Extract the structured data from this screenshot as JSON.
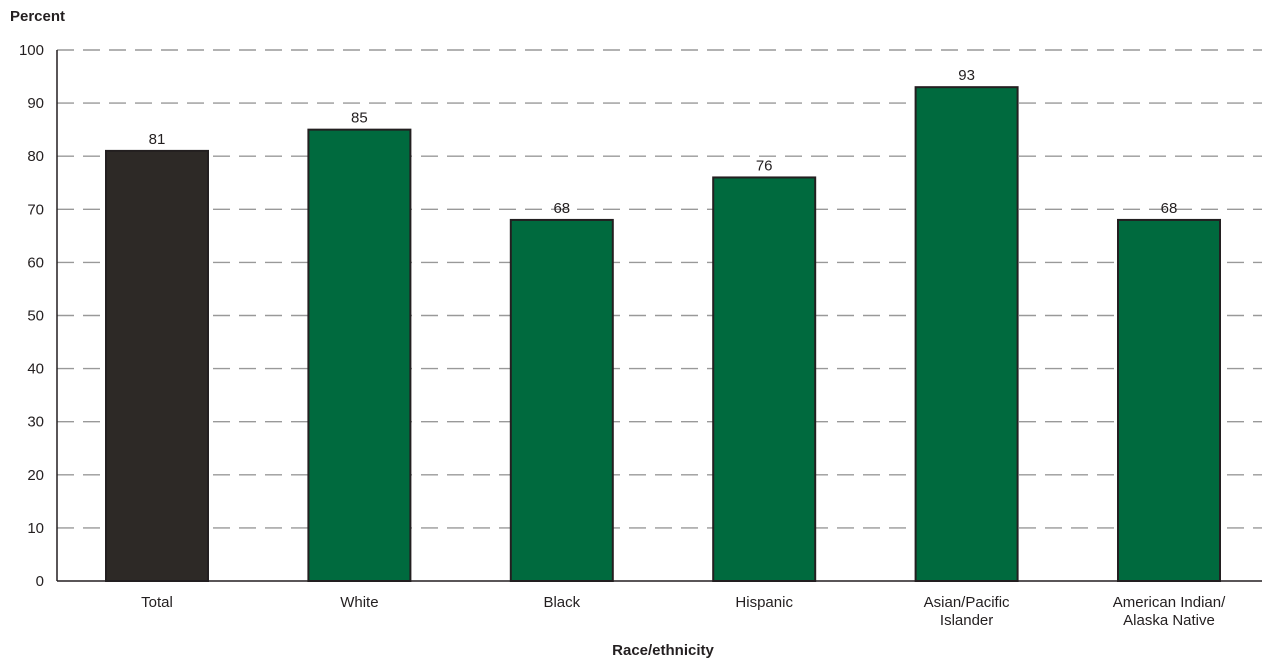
{
  "chart_data": {
    "type": "bar",
    "title": "",
    "ylabel": "Percent",
    "xlabel": "Race/ethnicity",
    "ylim": [
      0,
      100
    ],
    "yticks": [
      0,
      10,
      20,
      30,
      40,
      50,
      60,
      70,
      80,
      90,
      100
    ],
    "grid": "dashed horizontal",
    "categories": [
      [
        "Total"
      ],
      [
        "White"
      ],
      [
        "Black"
      ],
      [
        "Hispanic"
      ],
      [
        "Asian/Pacific",
        "Islander"
      ],
      [
        "American Indian/",
        "Alaska Native"
      ]
    ],
    "values": [
      81,
      85,
      68,
      76,
      93,
      68
    ],
    "data_labels": [
      "81",
      "85",
      "68",
      "76",
      "93",
      "68"
    ],
    "colors": {
      "total_bar": "#2d2926",
      "group_bar": "#006a3e",
      "bar_outline": "#231f20",
      "grid": "#999999",
      "axis": "#231f20"
    }
  }
}
